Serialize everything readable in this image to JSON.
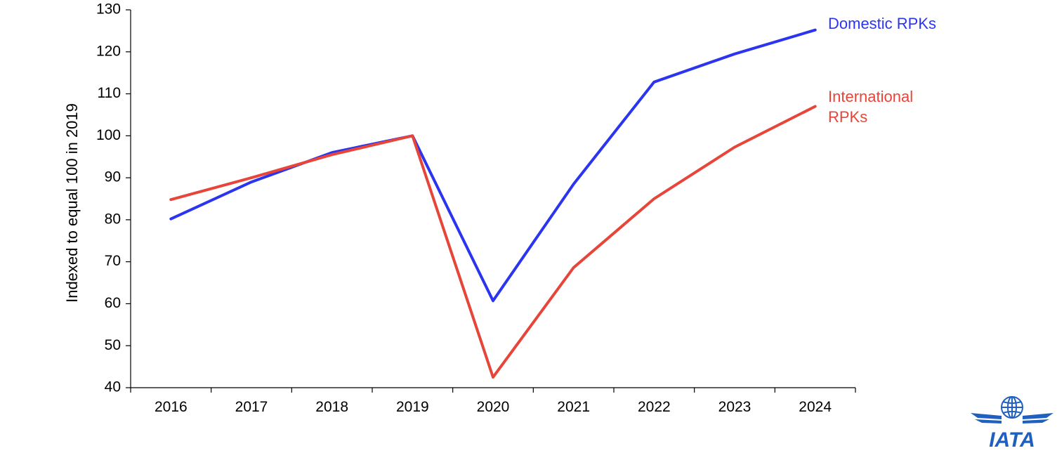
{
  "chart_data": {
    "type": "line",
    "title": "",
    "xlabel": "",
    "ylabel": "Indexed to equal 100 in 2019",
    "ylim": [
      40,
      130
    ],
    "yticks": [
      40,
      50,
      60,
      70,
      80,
      90,
      100,
      110,
      120,
      130
    ],
    "grid": false,
    "legend": "inline-right",
    "categories": [
      "2016",
      "2017",
      "2018",
      "2019",
      "2020",
      "2021",
      "2022",
      "2023",
      "2024"
    ],
    "series": [
      {
        "name": "Domestic RPKs",
        "label_lines": [
          "Domestic RPKs"
        ],
        "color": "#2b35f0",
        "values": [
          80.2,
          89.0,
          96.0,
          100.0,
          60.7,
          88.5,
          112.8,
          119.5,
          125.2
        ]
      },
      {
        "name": "International RPKs",
        "label_lines": [
          "International",
          "RPKs"
        ],
        "color": "#e8453a",
        "values": [
          84.8,
          90.0,
          95.5,
          100.0,
          42.5,
          68.6,
          85.0,
          97.3,
          107.0
        ]
      }
    ]
  },
  "logo": {
    "text": "IATA",
    "name": "iata-logo",
    "color": "#1f5fbf"
  }
}
